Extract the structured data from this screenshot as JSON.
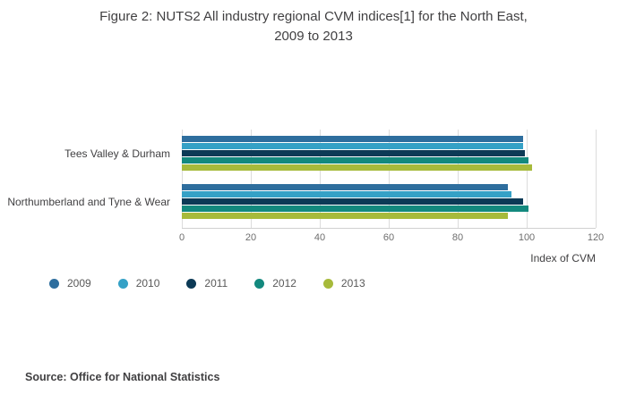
{
  "title": {
    "line1": "Figure 2: NUTS2 All industry regional CVM indices[1] for the North East,",
    "line2": "2009 to 2013"
  },
  "source": "Source: Office for National Statistics",
  "chart_data": {
    "type": "bar",
    "orientation": "horizontal",
    "title": "Figure 2: NUTS2 All industry regional CVM indices[1] for the North East, 2009 to 2013",
    "categories": [
      "Tees Valley & Durham",
      "Northumberland and Tyne & Wear"
    ],
    "series": [
      {
        "name": "2009",
        "color": "#2e6e9e",
        "values": [
          99,
          94.5
        ]
      },
      {
        "name": "2010",
        "color": "#35a1c6",
        "values": [
          99,
          95.5
        ]
      },
      {
        "name": "2011",
        "color": "#0c3a56",
        "values": [
          99.5,
          99
        ]
      },
      {
        "name": "2012",
        "color": "#13897e",
        "values": [
          100.5,
          100.5
        ]
      },
      {
        "name": "2013",
        "color": "#a7ba3b",
        "values": [
          101.5,
          94.5
        ]
      }
    ],
    "xlabel": "Index of CVM",
    "xlim": [
      0,
      120
    ],
    "xticks": [
      0,
      20,
      40,
      60,
      80,
      100,
      120
    ],
    "grid": true,
    "legend_position": "bottom"
  }
}
